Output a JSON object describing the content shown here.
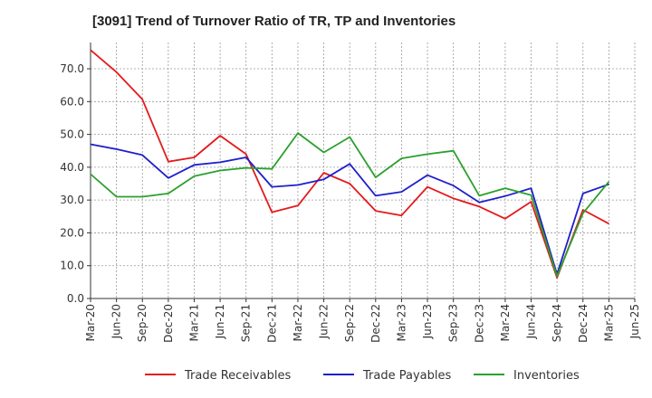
{
  "chart_data": {
    "type": "line",
    "title": "[3091]  Trend of Turnover Ratio of TR, TP and Inventories",
    "xlabel": "",
    "ylabel": "",
    "ylim": [
      0,
      78
    ],
    "yticks": [
      0,
      10,
      20,
      30,
      40,
      50,
      60,
      70
    ],
    "ytick_labels": [
      "0.0",
      "10.0",
      "20.0",
      "30.0",
      "40.0",
      "50.0",
      "60.0",
      "70.0"
    ],
    "xtick_labels": [
      "Mar-20",
      "Jun-20",
      "Sep-20",
      "Dec-20",
      "Mar-21",
      "Jun-21",
      "Sep-21",
      "Dec-21",
      "Mar-22",
      "Jun-22",
      "Sep-22",
      "Dec-22",
      "Mar-23",
      "Jun-23",
      "Sep-23",
      "Dec-23",
      "Mar-24",
      "Jun-24",
      "Sep-24",
      "Dec-24",
      "Mar-25",
      "Jun-25"
    ],
    "grid": true,
    "legend_position": "bottom",
    "series": [
      {
        "name": "Trade Receivables",
        "color": "#e41a1c",
        "values": [
          75.7,
          69.0,
          60.7,
          41.7,
          43.0,
          49.6,
          44.0,
          26.3,
          28.3,
          38.3,
          35.0,
          26.7,
          25.3,
          34.0,
          30.5,
          28.0,
          24.3,
          29.5,
          6.3,
          27.0,
          22.8,
          null
        ]
      },
      {
        "name": "Trade Payables",
        "color": "#1f1fcc",
        "values": [
          47.0,
          45.5,
          43.7,
          36.7,
          40.7,
          41.5,
          43.0,
          34.0,
          34.6,
          36.3,
          41.0,
          31.3,
          32.5,
          37.6,
          34.4,
          29.3,
          31.2,
          33.6,
          7.4,
          32.0,
          34.8,
          null
        ]
      },
      {
        "name": "Inventories",
        "color": "#2ca02c",
        "values": [
          37.9,
          31.0,
          31.0,
          32.0,
          37.3,
          39.0,
          39.8,
          39.5,
          50.4,
          44.5,
          49.2,
          36.9,
          42.7,
          44.0,
          45.0,
          31.3,
          33.6,
          31.5,
          6.8,
          26.0,
          35.6,
          null
        ]
      }
    ]
  }
}
